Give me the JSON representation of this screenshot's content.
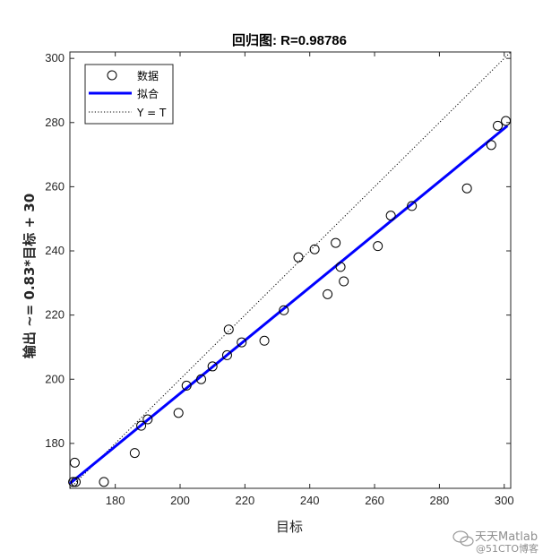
{
  "chart_data": {
    "type": "scatter",
    "title": "回归图: R=0.98786",
    "xlabel": "目标",
    "ylabel": "输出 ~= 0.83*目标 + 30",
    "xlim": [
      166,
      302
    ],
    "ylim": [
      166,
      302
    ],
    "x_ticks": [
      180,
      200,
      220,
      240,
      260,
      280,
      300
    ],
    "y_ticks": [
      180,
      200,
      220,
      240,
      260,
      280,
      300
    ],
    "x_tick_labels": [
      "180",
      "200",
      "220",
      "240",
      "260",
      "280",
      "300"
    ],
    "y_tick_labels": [
      "180",
      "200",
      "220",
      "240",
      "260",
      "280",
      "300"
    ],
    "grid": false,
    "legend_position": "top-left",
    "series": [
      {
        "name": "数据",
        "kind": "marker",
        "marker": "circle",
        "color": "#000000",
        "points": [
          {
            "x": 167,
            "y": 168
          },
          {
            "x": 167.5,
            "y": 174
          },
          {
            "x": 167.8,
            "y": 168
          },
          {
            "x": 176.5,
            "y": 168
          },
          {
            "x": 186,
            "y": 177
          },
          {
            "x": 188,
            "y": 185.5
          },
          {
            "x": 190,
            "y": 187.5
          },
          {
            "x": 199.5,
            "y": 189.5
          },
          {
            "x": 202,
            "y": 198
          },
          {
            "x": 206.5,
            "y": 200
          },
          {
            "x": 210,
            "y": 204
          },
          {
            "x": 214.5,
            "y": 207.5
          },
          {
            "x": 215,
            "y": 215.5
          },
          {
            "x": 219,
            "y": 211.5
          },
          {
            "x": 226,
            "y": 212
          },
          {
            "x": 232,
            "y": 221.5
          },
          {
            "x": 236.5,
            "y": 238
          },
          {
            "x": 241.5,
            "y": 240.5
          },
          {
            "x": 245.5,
            "y": 226.5
          },
          {
            "x": 248,
            "y": 242.5
          },
          {
            "x": 249.5,
            "y": 235
          },
          {
            "x": 250.5,
            "y": 230.5
          },
          {
            "x": 261,
            "y": 241.5
          },
          {
            "x": 265,
            "y": 251
          },
          {
            "x": 271.5,
            "y": 254
          },
          {
            "x": 288.5,
            "y": 259.5
          },
          {
            "x": 296,
            "y": 273
          },
          {
            "x": 298,
            "y": 279
          },
          {
            "x": 300.5,
            "y": 280.5
          }
        ]
      },
      {
        "name": "拟合",
        "kind": "line",
        "color": "#0000ff",
        "points": [
          {
            "x": 166,
            "y": 167.5
          },
          {
            "x": 301,
            "y": 279
          }
        ]
      },
      {
        "name": "Y = T",
        "kind": "dotted-line",
        "color": "#000000",
        "points": [
          {
            "x": 166,
            "y": 166
          },
          {
            "x": 302,
            "y": 302
          }
        ]
      }
    ]
  },
  "watermark": {
    "main": "天天Matlab",
    "sub": "@51CTO博客"
  }
}
